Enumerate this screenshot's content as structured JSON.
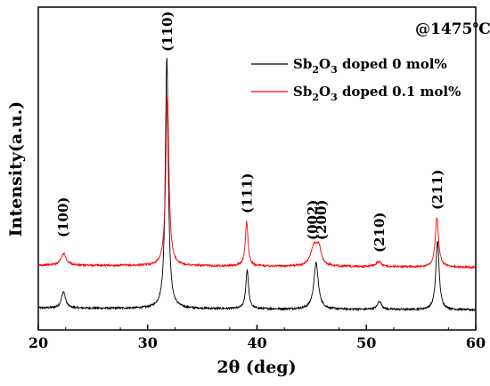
{
  "chart_data": {
    "type": "line",
    "title": "",
    "annotation": "@1475℃",
    "xlabel": "2θ (deg)",
    "ylabel": "Intensity(a.u.)",
    "xlim": [
      20,
      60
    ],
    "xticks": [
      20,
      30,
      40,
      50,
      60
    ],
    "xtick_labels": [
      "20",
      "30",
      "40",
      "50",
      "60"
    ],
    "y_ticks_shown": false,
    "grid": false,
    "legend_position": "top-right",
    "series": [
      {
        "name": "Sb2O3 doped 0 mol%",
        "legend": {
          "prefix": "Sb",
          "sub1": "2",
          "mid": "O",
          "sub2": "3",
          "suffix": " doped 0 mol%"
        },
        "color": "#000000",
        "baseline": 0.02,
        "peaks": [
          {
            "x": 22.3,
            "height": 0.1,
            "width": 0.22
          },
          {
            "x": 31.75,
            "height": 1.53,
            "width": 0.16
          },
          {
            "x": 39.1,
            "height": 0.24,
            "width": 0.15
          },
          {
            "x": 45.4,
            "height": 0.28,
            "width": 0.25
          },
          {
            "x": 51.2,
            "height": 0.05,
            "width": 0.22
          },
          {
            "x": 56.5,
            "height": 0.42,
            "width": 0.18
          }
        ]
      },
      {
        "name": "Sb2O3 doped 0.1 mol%",
        "legend": {
          "prefix": "Sb",
          "sub1": "2",
          "mid": "O",
          "sub2": "3",
          "suffix": " doped 0.1 mol%"
        },
        "color": "#ff0000",
        "baseline": 0.28,
        "peaks": [
          {
            "x": 22.3,
            "height": 0.07,
            "width": 0.3
          },
          {
            "x": 31.8,
            "height": 1.04,
            "width": 0.17
          },
          {
            "x": 39.05,
            "height": 0.27,
            "width": 0.15
          },
          {
            "x": 45.2,
            "height": 0.12,
            "width": 0.35
          },
          {
            "x": 45.65,
            "height": 0.1,
            "width": 0.25
          },
          {
            "x": 51.1,
            "height": 0.03,
            "width": 0.3
          },
          {
            "x": 56.45,
            "height": 0.3,
            "width": 0.18
          }
        ]
      }
    ],
    "peak_labels": [
      {
        "text": "(100)",
        "x": 22.3
      },
      {
        "text": "(110)",
        "x": 31.8
      },
      {
        "text": "(111)",
        "x": 39.1
      },
      {
        "text": "(002)",
        "x": 45.1
      },
      {
        "text": "(200)",
        "x": 45.9
      },
      {
        "text": "(210)",
        "x": 51.2
      },
      {
        "text": "(211)",
        "x": 56.5
      }
    ]
  }
}
